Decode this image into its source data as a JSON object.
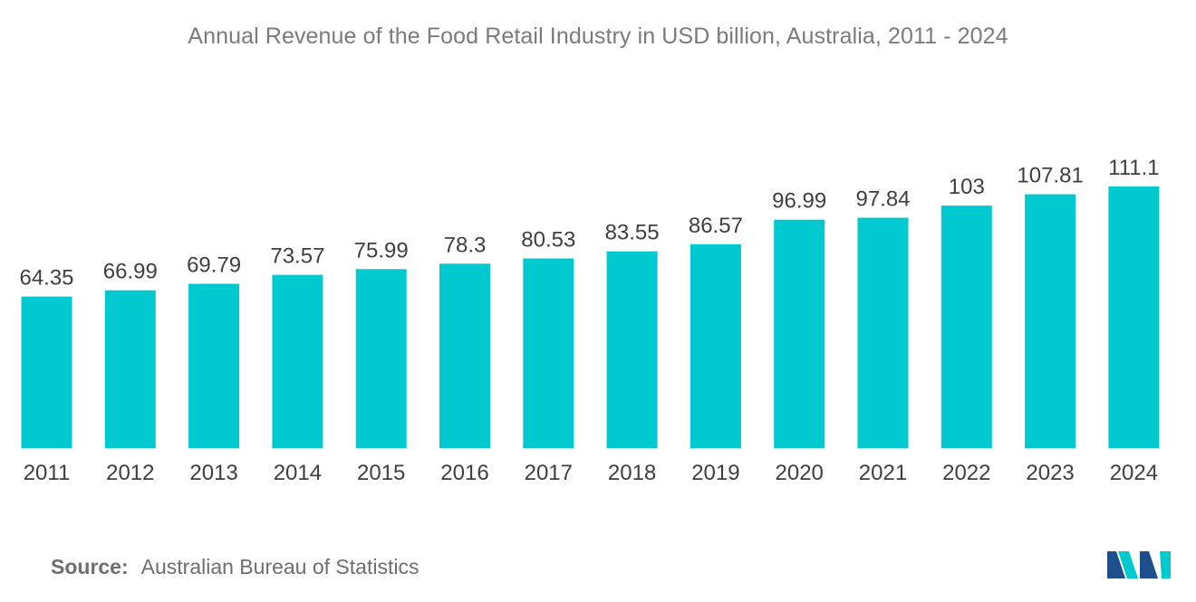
{
  "chart_data": {
    "type": "bar",
    "title": "Annual Revenue of the Food Retail Industry in USD billion, Australia, 2011 - 2024",
    "categories": [
      "2011",
      "2012",
      "2013",
      "2014",
      "2015",
      "2016",
      "2017",
      "2018",
      "2019",
      "2020",
      "2021",
      "2022",
      "2023",
      "2024"
    ],
    "values": [
      64.35,
      66.99,
      69.79,
      73.57,
      75.99,
      78.3,
      80.53,
      83.55,
      86.57,
      96.99,
      97.84,
      103,
      107.81,
      111.1
    ],
    "value_labels": [
      "64.35",
      "66.99",
      "69.79",
      "73.57",
      "75.99",
      "78.3",
      "80.53",
      "83.55",
      "86.57",
      "96.99",
      "97.84",
      "103",
      "107.81",
      "111.1"
    ],
    "xlabel": "",
    "ylabel": "",
    "ylim": [
      0,
      111.1
    ],
    "grid": false,
    "legend": "none",
    "bar_color": "#00c9cf"
  },
  "source": {
    "label": "Source:",
    "text": "Australian Bureau of Statistics"
  },
  "logo": {
    "icon": "mordor-intelligence-logo-icon",
    "colors": [
      "#1f4e8c",
      "#00c9cf"
    ]
  }
}
